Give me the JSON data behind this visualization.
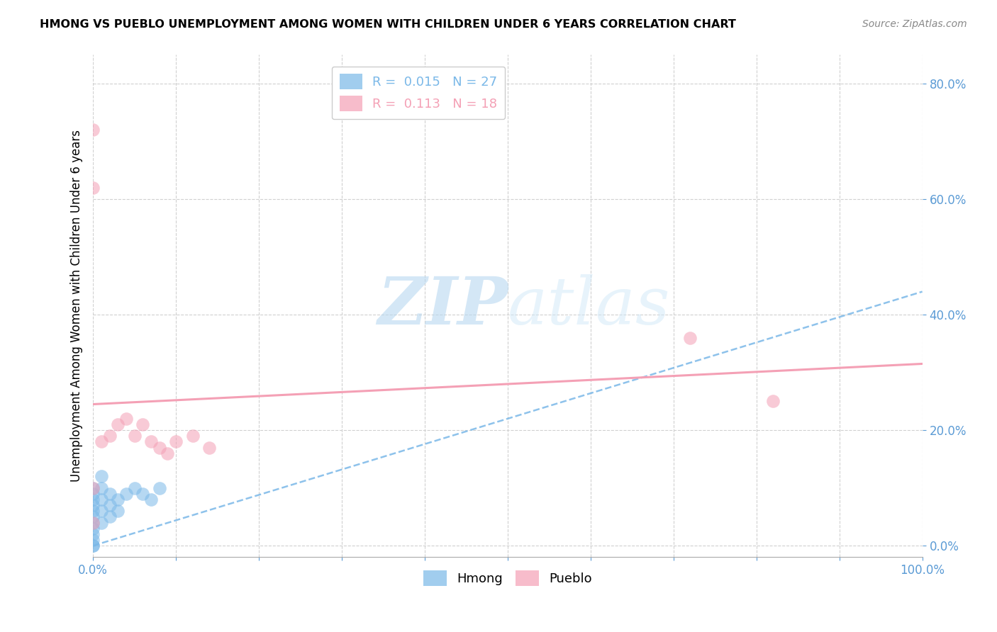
{
  "title": "HMONG VS PUEBLO UNEMPLOYMENT AMONG WOMEN WITH CHILDREN UNDER 6 YEARS CORRELATION CHART",
  "source": "Source: ZipAtlas.com",
  "ylabel": "Unemployment Among Women with Children Under 6 years",
  "xlim": [
    0,
    1
  ],
  "ylim": [
    -0.02,
    0.85
  ],
  "yticks": [
    0.0,
    0.2,
    0.4,
    0.6,
    0.8
  ],
  "ytick_labels": [
    "0.0%",
    "20.0%",
    "40.0%",
    "60.0%",
    "80.0%"
  ],
  "xticks": [
    0.0,
    0.1,
    0.2,
    0.3,
    0.4,
    0.5,
    0.6,
    0.7,
    0.8,
    0.9,
    1.0
  ],
  "xtick_labels": [
    "0.0%",
    "",
    "",
    "",
    "",
    "",
    "",
    "",
    "",
    "",
    "100.0%"
  ],
  "legend_top": [
    {
      "label": "R =  0.015   N = 27",
      "color": "#7ab8e8"
    },
    {
      "label": "R =  0.113   N = 18",
      "color": "#f4a0b5"
    }
  ],
  "legend_bottom": [
    {
      "label": "Hmong",
      "color": "#7ab8e8"
    },
    {
      "label": "Pueblo",
      "color": "#f4a0b5"
    }
  ],
  "hmong_color": "#7ab8e8",
  "pueblo_color": "#f4a0b5",
  "tick_color": "#5b9bd5",
  "hmong_scatter_x": [
    0.0,
    0.0,
    0.0,
    0.0,
    0.0,
    0.0,
    0.0,
    0.0,
    0.0,
    0.0,
    0.0,
    0.0,
    0.01,
    0.01,
    0.01,
    0.01,
    0.01,
    0.02,
    0.02,
    0.02,
    0.03,
    0.03,
    0.04,
    0.05,
    0.06,
    0.07,
    0.08
  ],
  "hmong_scatter_y": [
    0.0,
    0.0,
    0.01,
    0.02,
    0.03,
    0.04,
    0.05,
    0.06,
    0.07,
    0.08,
    0.09,
    0.1,
    0.04,
    0.06,
    0.08,
    0.1,
    0.12,
    0.05,
    0.07,
    0.09,
    0.06,
    0.08,
    0.09,
    0.1,
    0.09,
    0.08,
    0.1
  ],
  "pueblo_scatter_x": [
    0.0,
    0.0,
    0.0,
    0.0,
    0.01,
    0.02,
    0.03,
    0.04,
    0.05,
    0.06,
    0.07,
    0.08,
    0.09,
    0.1,
    0.12,
    0.14,
    0.72,
    0.82
  ],
  "pueblo_scatter_y": [
    0.72,
    0.62,
    0.1,
    0.04,
    0.18,
    0.19,
    0.21,
    0.22,
    0.19,
    0.21,
    0.18,
    0.17,
    0.16,
    0.18,
    0.19,
    0.17,
    0.36,
    0.25
  ],
  "hmong_trend_x0": 0.0,
  "hmong_trend_x1": 1.0,
  "hmong_trend_y0": 0.0,
  "hmong_trend_y1": 0.44,
  "pueblo_trend_x0": 0.0,
  "pueblo_trend_x1": 1.0,
  "pueblo_trend_y0": 0.245,
  "pueblo_trend_y1": 0.315,
  "watermark_zip": "ZIP",
  "watermark_atlas": "atlas",
  "background_color": "#ffffff",
  "grid_color": "#d0d0d0"
}
